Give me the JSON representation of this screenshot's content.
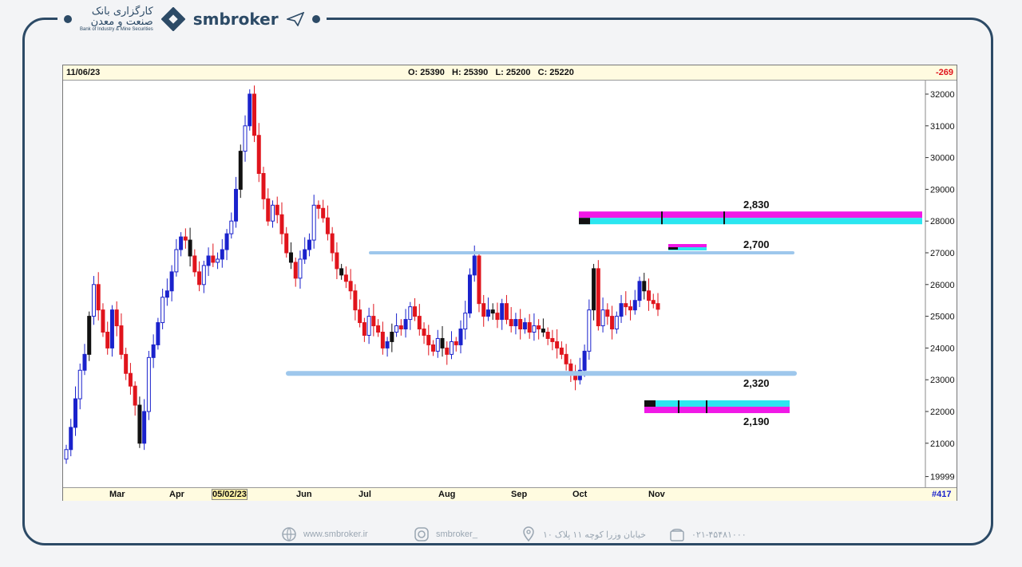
{
  "header": {
    "bank_name": "کارگزاری بانک",
    "bank_name2": "صنعت و معدن",
    "bank_english": "Bank of Industry & Mine Securities",
    "brand": "smbroker"
  },
  "info_bar": {
    "date": "11/06/23",
    "ohlc": "O: 25390   H: 25390   L: 25200   C: 25220",
    "change": "-269"
  },
  "footer": {
    "website": "www.smbroker.ir",
    "instagram": "smbroker_",
    "address": "خیابان وزرا کوچه ۱۱ پلاک ۱۰",
    "phone": "۰۲۱-۴۵۴۸۱۰۰۰"
  },
  "chart_data": {
    "type": "candlestick",
    "y_ticks": [
      "32000",
      "31000",
      "30000",
      "29000",
      "28000",
      "27000",
      "26000",
      "25000",
      "24000",
      "23000",
      "22000",
      "21000",
      "19999"
    ],
    "ylim": [
      19900,
      32300
    ],
    "x_ticks": [
      "Mar",
      "Apr",
      "05/02/23",
      "Jun",
      "Jul",
      "Aug",
      "Sep",
      "Oct",
      "Nov"
    ],
    "bar_count_label": "#417",
    "colors": {
      "up": "#1a22cc",
      "down": "#e0141c",
      "neutral": "#111111",
      "level": "#9ec7ec",
      "magenta": "#f019e6",
      "cyan": "#2be6f0"
    },
    "levels": [
      {
        "label": "2,830",
        "value": 28000,
        "kind": "zone"
      },
      {
        "label": "2,700",
        "value": 27000,
        "kind": "line"
      },
      {
        "label": "2,320",
        "value": 23200,
        "kind": "line"
      },
      {
        "label": "2,190",
        "value": 22150,
        "kind": "zone"
      }
    ],
    "candles_close": [
      20800,
      21500,
      22400,
      23300,
      23800,
      25000,
      26000,
      25200,
      24500,
      24000,
      25200,
      24700,
      23800,
      23200,
      22800,
      22200,
      21000,
      22000,
      23700,
      24100,
      24800,
      25600,
      25800,
      26400,
      27100,
      27500,
      27400,
      26900,
      26400,
      26000,
      26600,
      26900,
      26700,
      26800,
      27100,
      27600,
      28000,
      29000,
      30200,
      31000,
      32000,
      30700,
      29500,
      28700,
      28000,
      28500,
      28200,
      27600,
      27000,
      26700,
      26200,
      26800,
      27100,
      27400,
      28500,
      28400,
      28100,
      27600,
      27000,
      26500,
      26300,
      26100,
      25800,
      25200,
      24800,
      24400,
      25000,
      24700,
      24500,
      24000,
      24200,
      24500,
      24700,
      24600,
      24900,
      25300,
      25000,
      24600,
      24400,
      24100,
      23900,
      24300,
      24000,
      23800,
      24200,
      24100,
      24600,
      25100,
      26300,
      26900,
      25400,
      25000,
      25200,
      25100,
      24900,
      25400,
      24900,
      24700,
      24900,
      24600,
      24800,
      24500,
      24700,
      24600,
      24500,
      24300,
      24200,
      24000,
      23800,
      23500,
      23200,
      23000,
      23300,
      23900,
      25200,
      26500,
      24700,
      25200,
      25000,
      24600,
      25000,
      25400,
      25300,
      25200,
      25500,
      26100,
      25800,
      25500,
      25400,
      25220
    ]
  }
}
